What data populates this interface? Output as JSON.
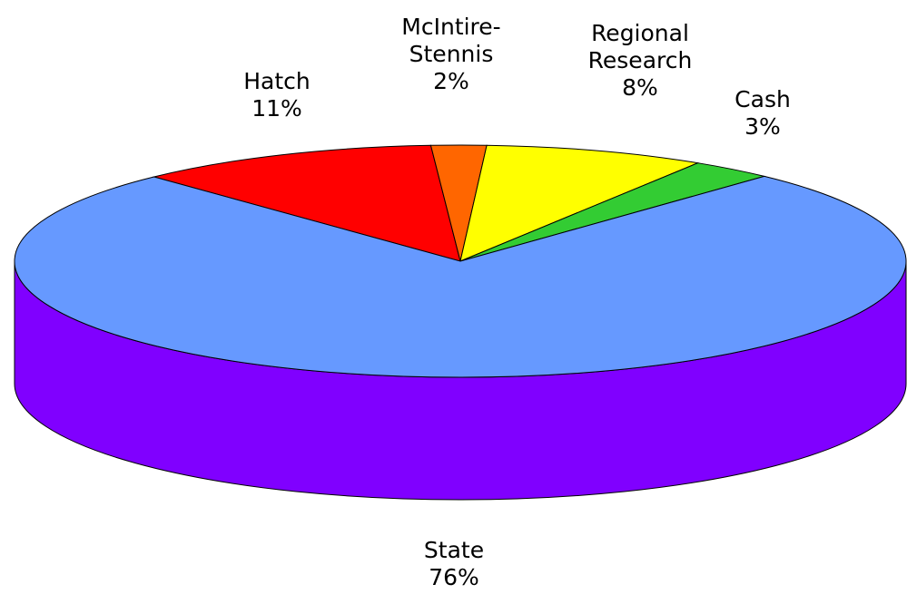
{
  "chart_data": {
    "type": "pie",
    "categories": [
      "Hatch",
      "McIntire-Stennis",
      "Regional Research",
      "Cash",
      "State"
    ],
    "values": [
      11,
      2,
      8,
      3,
      76
    ],
    "value_labels": [
      "11%",
      "2%",
      "8%",
      "3%",
      "76%"
    ],
    "colors": [
      "#ff0000",
      "#ff6600",
      "#ffff00",
      "#33cc33",
      "#6699ff"
    ],
    "side_colors": [
      "#aa0000",
      "#aa4400",
      "#aaaa00",
      "#228822",
      "#8000ff"
    ]
  }
}
